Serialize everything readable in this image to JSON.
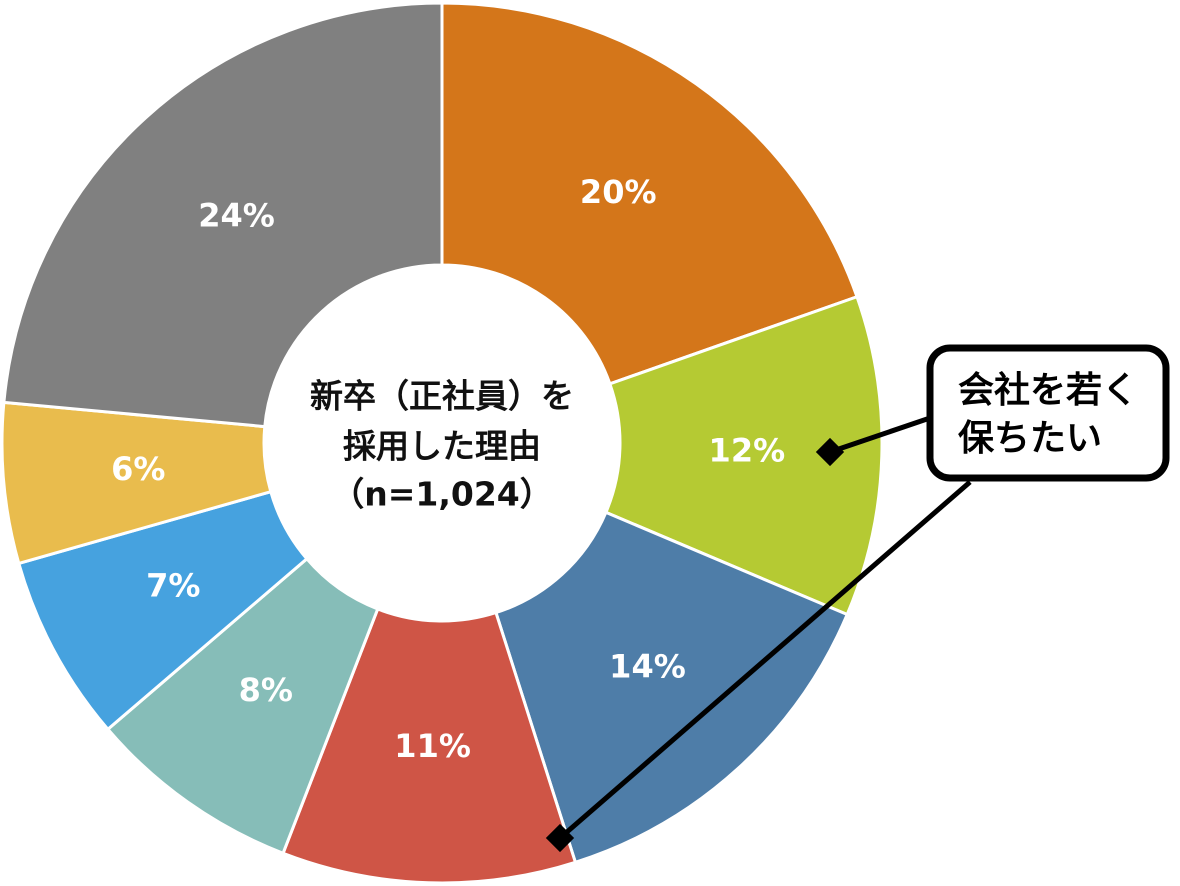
{
  "chart_data": {
    "type": "pie",
    "categories": [
      null,
      null,
      null,
      null,
      null,
      null,
      null,
      null
    ],
    "values": [
      20,
      12,
      14,
      11,
      8,
      7,
      6,
      24
    ],
    "value_labels": [
      "20%",
      "12%",
      "14%",
      "11%",
      "8%",
      "7%",
      "6%",
      "24%"
    ],
    "colors": [
      "#D4761A",
      "#B5CA33",
      "#4E7DA8",
      "#CF5546",
      "#86BDB8",
      "#46A2DF",
      "#E9BC4D",
      "#808080"
    ],
    "center_label": [
      "新卒（正社員）を",
      "採用した理由",
      "（n=1,024）"
    ],
    "annotation": [
      "会社を若く",
      "保ちたい"
    ]
  }
}
